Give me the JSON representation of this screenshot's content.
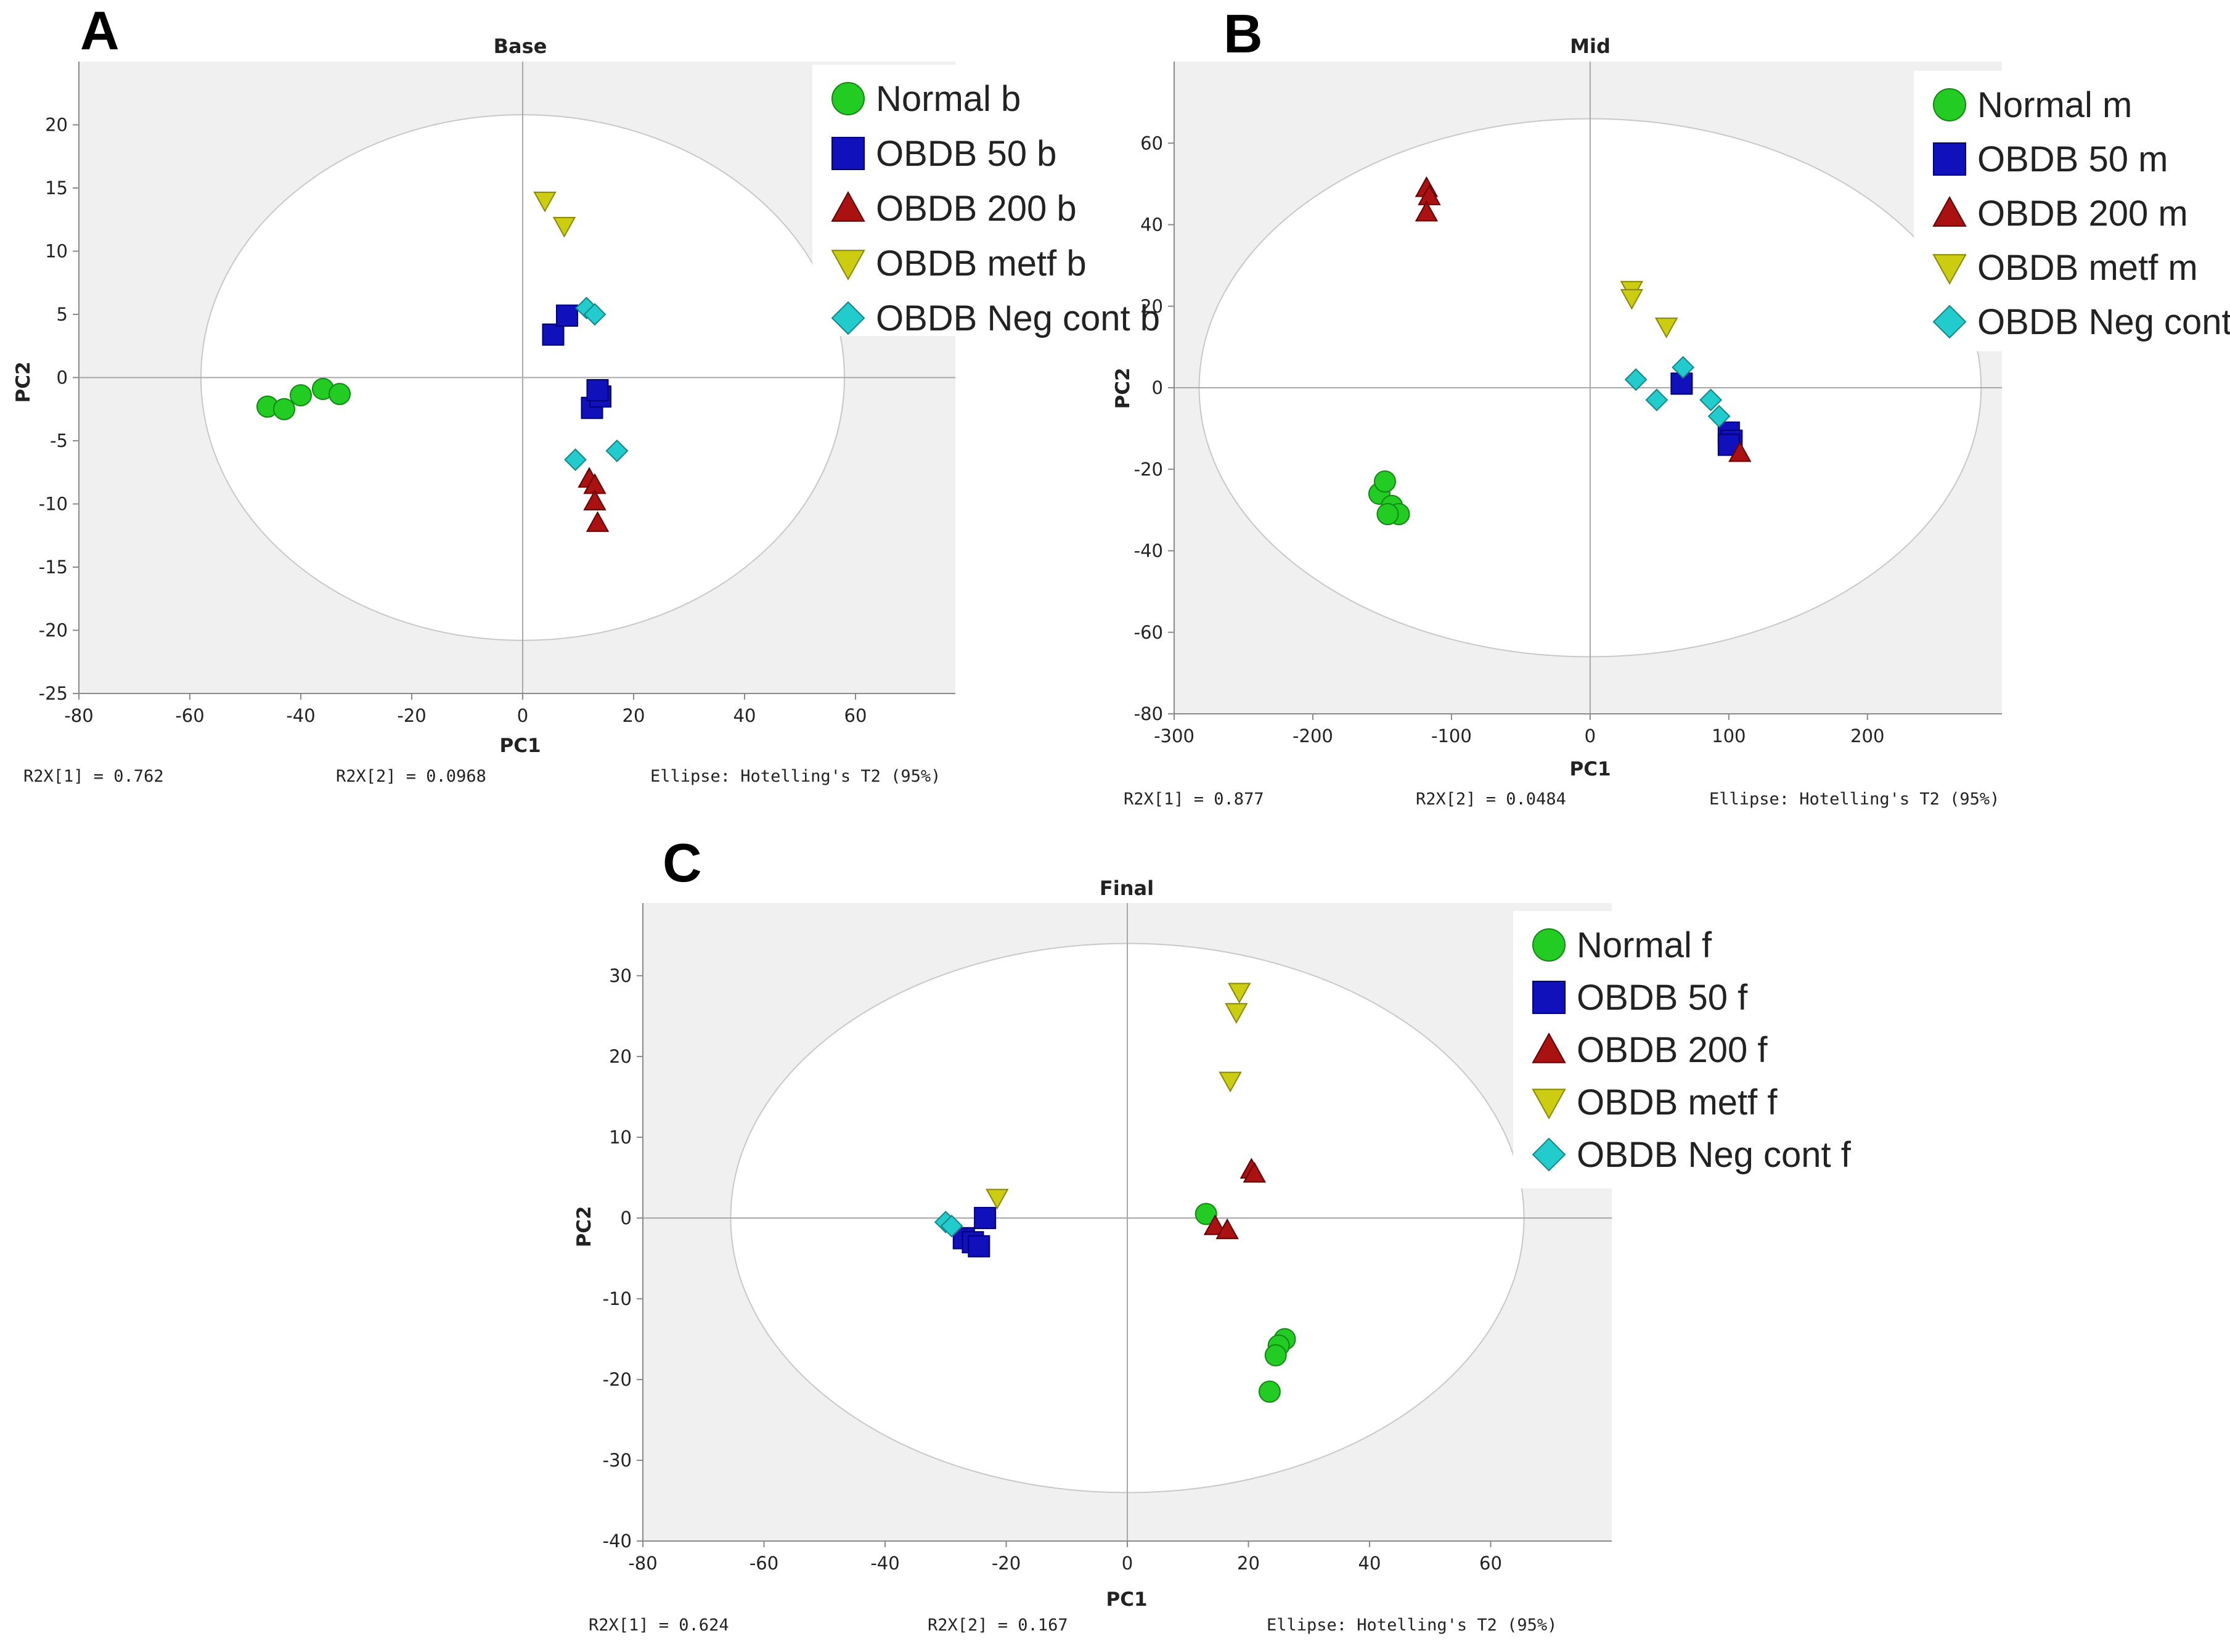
{
  "figure": {
    "panels": [
      {
        "letter": "A",
        "footer": {
          "r2x1": "R2X[1] = 0.762",
          "r2x2": "R2X[2] = 0.0968",
          "ellipse": "Ellipse: Hotelling's T2 (95%)"
        }
      },
      {
        "letter": "B",
        "footer": {
          "r2x1": "R2X[1] = 0.877",
          "r2x2": "R2X[2] = 0.0484",
          "ellipse": "Ellipse: Hotelling's T2 (95%)"
        }
      },
      {
        "letter": "C",
        "footer": {
          "r2x1": "R2X[1] = 0.624",
          "r2x2": "R2X[2] = 0.167",
          "ellipse": "Ellipse: Hotelling's T2 (95%)"
        }
      }
    ]
  },
  "group_styles": [
    {
      "group": "Normal",
      "marker": "circle",
      "color": "#22cc22",
      "edge": "#118811"
    },
    {
      "group": "OBDB 50",
      "marker": "square",
      "color": "#1111bb",
      "edge": "#000077"
    },
    {
      "group": "OBDB 200",
      "marker": "triangle-up",
      "color": "#aa1111",
      "edge": "#660000"
    },
    {
      "group": "OBDB metf",
      "marker": "triangle-down",
      "color": "#cccc11",
      "edge": "#888800"
    },
    {
      "group": "OBDB Neg cont",
      "marker": "diamond",
      "color": "#22cccc",
      "edge": "#118888"
    }
  ],
  "chart_data": [
    {
      "type": "scatter",
      "title": "Base",
      "xlabel": "PC1",
      "ylabel": "PC2",
      "xlim": [
        -80,
        78
      ],
      "ylim": [
        -25,
        25
      ],
      "xticks": [
        -80,
        -60,
        -40,
        -20,
        0,
        20,
        40,
        60
      ],
      "yticks": [
        -25,
        -20,
        -15,
        -10,
        -5,
        0,
        5,
        10,
        15,
        20
      ],
      "ellipse": {
        "cx": 0,
        "cy": 0,
        "rx": 58,
        "ry": 20.8
      },
      "series": [
        {
          "name": "Normal b",
          "x": [
            -46,
            -43,
            -40,
            -36,
            -33
          ],
          "y": [
            -2.3,
            -2.5,
            -1.4,
            -0.9,
            -1.3
          ]
        },
        {
          "name": "OBDB 50 b",
          "x": [
            5.5,
            8,
            12.5,
            14,
            13.5
          ],
          "y": [
            3.4,
            4.9,
            -2.4,
            -1.5,
            -1
          ]
        },
        {
          "name": "OBDB 200 b",
          "x": [
            12,
            13,
            13,
            13.5
          ],
          "y": [
            -8,
            -8.5,
            -9.8,
            -11.5
          ]
        },
        {
          "name": "OBDB metf b",
          "x": [
            4,
            7.5
          ],
          "y": [
            14,
            12
          ]
        },
        {
          "name": "OBDB Neg cont b",
          "x": [
            11.5,
            13,
            9.5,
            17
          ],
          "y": [
            5.5,
            5,
            -6.5,
            -5.8
          ]
        }
      ]
    },
    {
      "type": "scatter",
      "title": "Mid",
      "xlabel": "PC1",
      "ylabel": "PC2",
      "xlim": [
        -300,
        297
      ],
      "ylim": [
        -80,
        80
      ],
      "xticks": [
        -300,
        -200,
        -100,
        0,
        100,
        200
      ],
      "yticks": [
        -80,
        -60,
        -40,
        -20,
        0,
        20,
        40,
        60
      ],
      "ellipse": {
        "cx": 0,
        "cy": 0,
        "rx": 282,
        "ry": 66
      },
      "series": [
        {
          "name": "Normal m",
          "x": [
            -152,
            -148,
            -143,
            -138,
            -146
          ],
          "y": [
            -26,
            -23,
            -29,
            -31,
            -31
          ]
        },
        {
          "name": "OBDB 50 m",
          "x": [
            66,
            100,
            102,
            100
          ],
          "y": [
            1,
            -11,
            -13,
            -14
          ]
        },
        {
          "name": "OBDB 200 m",
          "x": [
            -118,
            -116,
            -118,
            108
          ],
          "y": [
            49,
            47,
            43,
            -16
          ]
        },
        {
          "name": "OBDB metf m",
          "x": [
            30,
            30,
            55
          ],
          "y": [
            24,
            22,
            15
          ]
        },
        {
          "name": "OBDB Neg cont m",
          "x": [
            33,
            48,
            67,
            87,
            93
          ],
          "y": [
            2,
            -3,
            5,
            -3,
            -7
          ]
        }
      ]
    },
    {
      "type": "scatter",
      "title": "Final",
      "xlabel": "PC1",
      "ylabel": "PC2",
      "xlim": [
        -80,
        80
      ],
      "ylim": [
        -40,
        39
      ],
      "xticks": [
        -80,
        -60,
        -40,
        -20,
        0,
        20,
        40,
        60
      ],
      "yticks": [
        -40,
        -30,
        -20,
        -10,
        0,
        10,
        20,
        30
      ],
      "ellipse": {
        "cx": 0,
        "cy": 0,
        "rx": 65.5,
        "ry": 34
      },
      "series": [
        {
          "name": "Normal f",
          "x": [
            13,
            26,
            25,
            24.5,
            23.5
          ],
          "y": [
            0.5,
            -15,
            -15.8,
            -17,
            -21.5
          ]
        },
        {
          "name": "OBDB 50 f",
          "x": [
            -23.5,
            -27,
            -25.5,
            -24.5
          ],
          "y": [
            0,
            -2.5,
            -3,
            -3.5
          ]
        },
        {
          "name": "OBDB 200 f",
          "x": [
            14.5,
            16.5,
            20.5,
            21
          ],
          "y": [
            -1,
            -1.5,
            6,
            5.5
          ]
        },
        {
          "name": "OBDB metf f",
          "x": [
            -21.5,
            18.5,
            18,
            17
          ],
          "y": [
            2.5,
            28,
            25.5,
            17
          ]
        },
        {
          "name": "OBDB Neg cont f",
          "x": [
            -30,
            -29
          ],
          "y": [
            -0.5,
            -1
          ]
        }
      ]
    }
  ]
}
